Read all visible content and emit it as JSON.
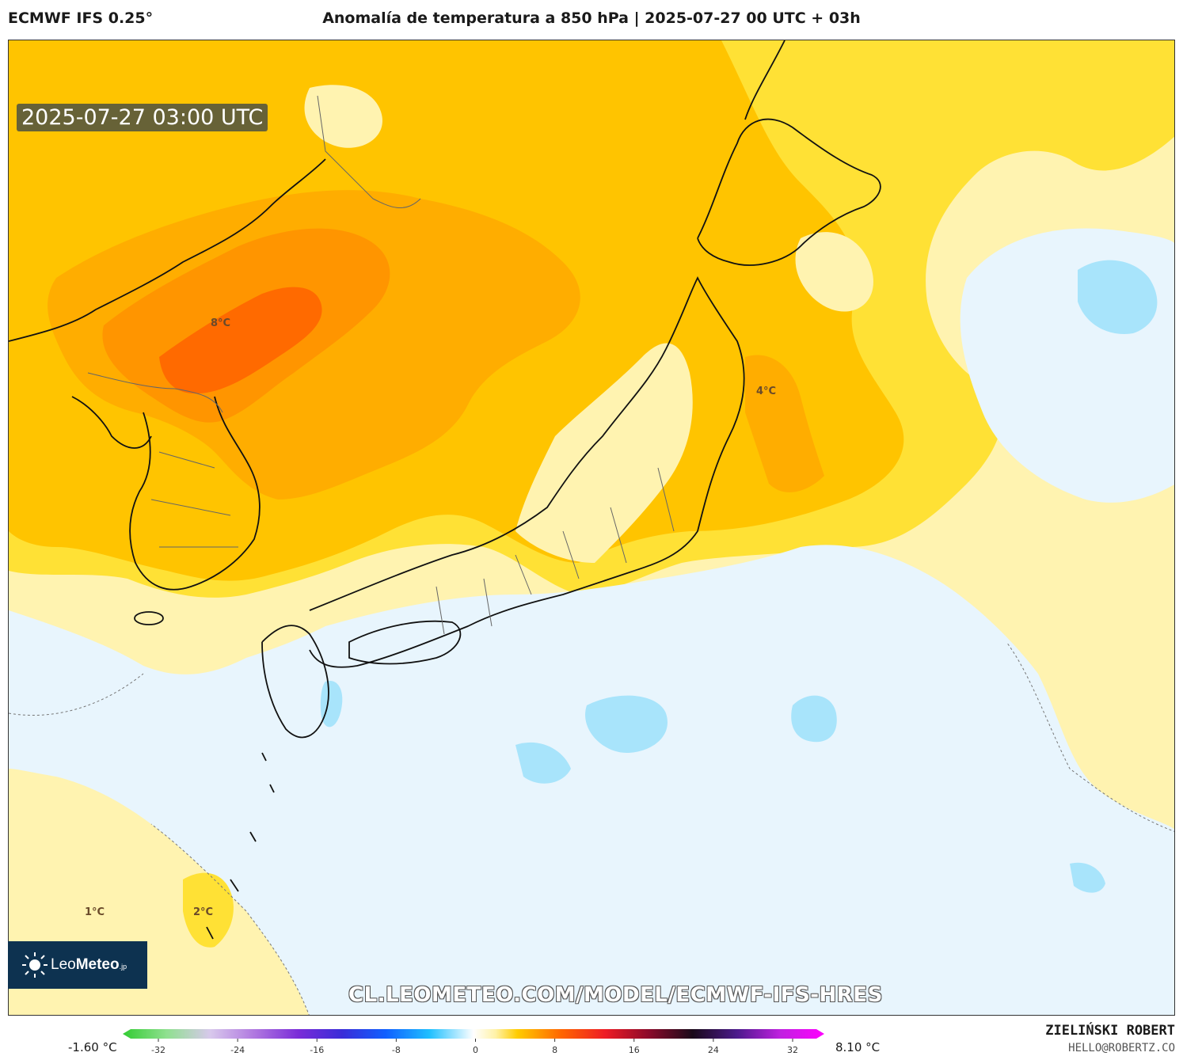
{
  "header": {
    "model": "ECMWF IFS 0.25°",
    "title": "Anomalía de temperatura a 850 hPa | 2025-07-27 00 UTC + 03h"
  },
  "map": {
    "timestamp": "2025-07-27 03:00 UTC",
    "contour_labels": [
      {
        "id": "label-8c",
        "text": "8°C"
      },
      {
        "id": "label-4c",
        "text": "4°C"
      },
      {
        "id": "label-1c",
        "text": "1°C"
      },
      {
        "id": "label-2c",
        "text": "2°C"
      }
    ],
    "url": "CL.LEOMETEO.COM/MODEL/ECMWF-IFS-HRES",
    "logo": {
      "brand_light": "Leo",
      "brand_bold": "Meteo",
      "suffix": ".jp"
    }
  },
  "colorbar": {
    "min_label": "-1.60 °C",
    "max_label": "8.10 °C",
    "ticks": [
      "-32",
      "-24",
      "-16",
      "-8",
      "0",
      "8",
      "16",
      "24",
      "32"
    ],
    "range": [
      -32,
      32
    ],
    "stops": [
      {
        "v": -32,
        "c": "#33cc33"
      },
      {
        "v": -28,
        "c": "#8fe08f"
      },
      {
        "v": -24,
        "c": "#d8c8ec"
      },
      {
        "v": -20,
        "c": "#b078e0"
      },
      {
        "v": -16,
        "c": "#7a2cd8"
      },
      {
        "v": -12,
        "c": "#3a2cd8"
      },
      {
        "v": -8,
        "c": "#1060ff"
      },
      {
        "v": -4,
        "c": "#20c0ff"
      },
      {
        "v": 0,
        "c": "#ffffff"
      },
      {
        "v": 2,
        "c": "#fff2a8"
      },
      {
        "v": 4,
        "c": "#ffcc00"
      },
      {
        "v": 8,
        "c": "#ff6600"
      },
      {
        "v": 12,
        "c": "#ee1c25"
      },
      {
        "v": 16,
        "c": "#8b0a2a"
      },
      {
        "v": 20,
        "c": "#1a0a1a"
      },
      {
        "v": 24,
        "c": "#4b1a8b"
      },
      {
        "v": 28,
        "c": "#c020e0"
      },
      {
        "v": 32,
        "c": "#ff00ff"
      }
    ]
  },
  "credits": {
    "author": "ZIELIŃSKI ROBERT",
    "email": "HELLO@ROBERTZ.CO"
  },
  "colors": {
    "anom_neg": "#e8f5fd",
    "anom_neg2": "#a8e4fb",
    "anom_1": "#fff3b0",
    "anom_2": "#ffe135",
    "anom_3": "#ffc400",
    "anom_4": "#ffad00",
    "anom_5": "#ff9500",
    "anom_6": "#ff6a00",
    "coast": "#111111",
    "border": "#666666"
  }
}
